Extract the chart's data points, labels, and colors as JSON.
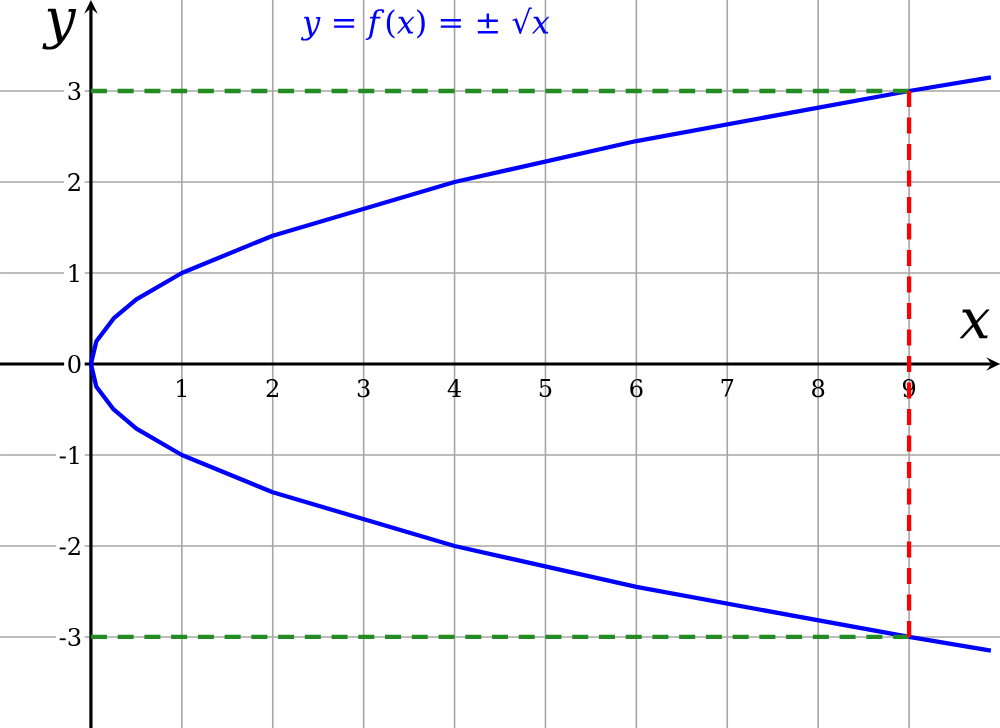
{
  "chart_data": {
    "type": "line",
    "title": "*y* = *f*(*x*) = ± √*x*",
    "xlabel": "x",
    "ylabel": "y",
    "xlim": [
      -1,
      10
    ],
    "ylim": [
      -4,
      4
    ],
    "xticks": [
      1,
      2,
      3,
      4,
      5,
      6,
      7,
      8,
      9
    ],
    "yticks": [
      -3,
      -2,
      -1,
      0,
      1,
      2,
      3
    ],
    "grid": true,
    "marker": "none",
    "series": [
      {
        "color": "#0000ff",
        "line_style": "solid",
        "x": [
          0,
          0.06,
          0.25,
          0.5,
          1,
          2,
          4,
          6,
          9,
          9.9
        ],
        "values": [
          0,
          0.25,
          0.5,
          0.71,
          1,
          1.41,
          2,
          2.45,
          3,
          3.15
        ]
      },
      {
        "color": "#0000ff",
        "line_style": "solid",
        "x": [
          0,
          0.06,
          0.25,
          0.5,
          1,
          2,
          4,
          6,
          9,
          9.9
        ],
        "values": [
          0,
          -0.25,
          -0.5,
          -0.71,
          -1,
          -1.41,
          -2,
          -2.45,
          -3,
          -3.15
        ]
      },
      {
        "color": "#228b22",
        "line_style": "dashed",
        "x": [
          0,
          9
        ],
        "values": [
          3,
          3
        ]
      },
      {
        "color": "#228b22",
        "line_style": "dashed",
        "x": [
          0,
          9
        ],
        "values": [
          -3,
          -3
        ]
      },
      {
        "color": "#ff0000",
        "line_style": "dashed",
        "x": [
          9,
          9
        ],
        "values": [
          -3,
          3
        ]
      }
    ]
  }
}
